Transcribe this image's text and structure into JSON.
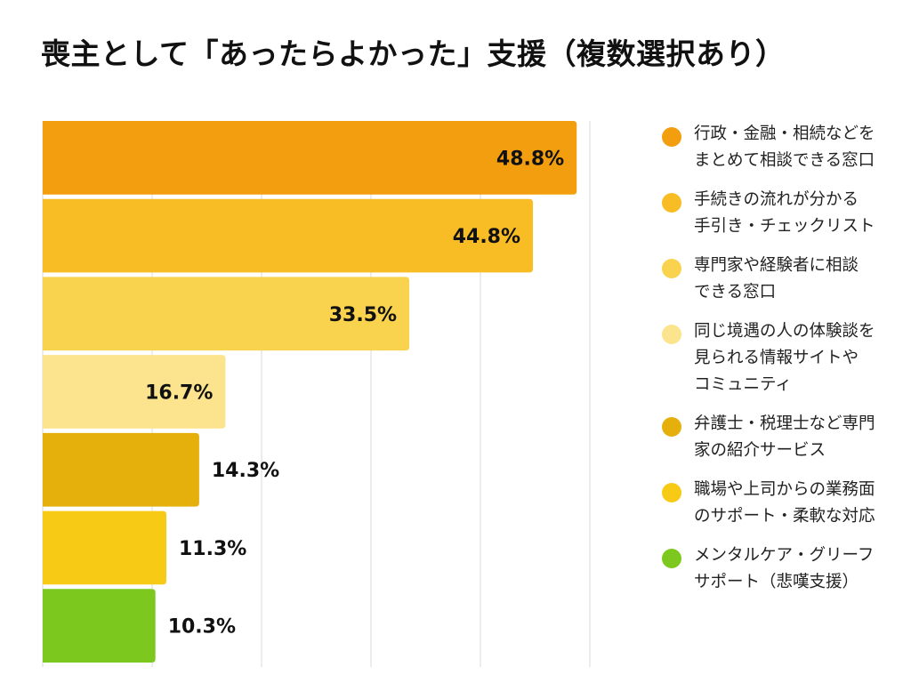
{
  "title": "喪主として「あったらよかった」支援（複数選択あり）",
  "chart_data": {
    "type": "bar",
    "orientation": "horizontal",
    "title": "喪主として「あったらよかった」支援（複数選択あり）",
    "xlim": [
      0,
      50
    ],
    "grid": true,
    "legend_position": "right",
    "unit": "%",
    "categories": [
      "行政・金融・相続などを\nまとめて相談できる窓口",
      "手続きの流れが分かる\n手引き・チェックリスト",
      "専門家や経験者に相談\nできる窓口",
      "同じ境遇の人の体験談を\n見られる情報サイトや\nコミュニティ",
      "弁護士・税理士など専門\n家の紹介サービス",
      "職場や上司からの業務面\nのサポート・柔軟な対応",
      "メンタルケア・グリーフ\nサポート（悲嘆支援）"
    ],
    "values": [
      48.8,
      44.8,
      33.5,
      16.7,
      14.3,
      11.3,
      10.3
    ],
    "labels": [
      "48.8%",
      "44.8%",
      "33.5%",
      "16.7%",
      "14.3%",
      "11.3%",
      "10.3%"
    ],
    "colors": [
      "#F29E0E",
      "#F8BC24",
      "#F9D24E",
      "#FBE48D",
      "#E6B00C",
      "#F7CB15",
      "#7DC81E"
    ]
  }
}
